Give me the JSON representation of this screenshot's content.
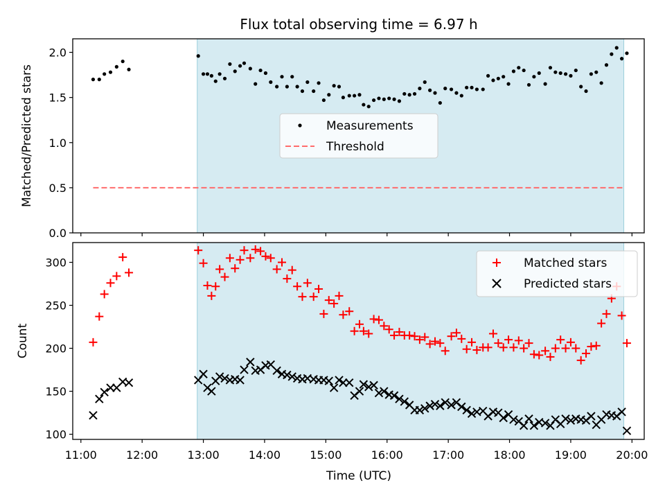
{
  "figure": {
    "title": "Flux total observing time = 6.97 h",
    "xlabel": "Time (UTC)"
  },
  "colors": {
    "observing_shade": "#add8e6",
    "measurement": "#000000",
    "threshold": "#ff6b6b",
    "matched": "#ff0000",
    "predicted": "#000000"
  },
  "chart_data": [
    {
      "type": "scatter",
      "ylabel": "Matched/Predicted stars",
      "xlim": [
        "10:52",
        "20:12"
      ],
      "ylim": [
        0,
        2.15
      ],
      "xticks": [
        "11:00",
        "12:00",
        "13:00",
        "14:00",
        "15:00",
        "16:00",
        "17:00",
        "18:00",
        "19:00",
        "20:00"
      ],
      "yticks": [
        "0.0",
        "0.5",
        "1.0",
        "1.5",
        "2.0"
      ],
      "shaded_span": [
        "12:54",
        "19:52"
      ],
      "legend_position": "center",
      "series": [
        {
          "name": "Measurements",
          "marker": "dot",
          "x": [
            "11:12",
            "11:18",
            "11:23",
            "11:29",
            "11:35",
            "11:41",
            "11:47",
            "12:55",
            "13:00",
            "13:04",
            "13:08",
            "13:12",
            "13:16",
            "13:21",
            "13:26",
            "13:31",
            "13:36",
            "13:40",
            "13:46",
            "13:51",
            "13:56",
            "14:01",
            "14:06",
            "14:12",
            "14:17",
            "14:22",
            "14:27",
            "14:32",
            "14:37",
            "14:42",
            "14:48",
            "14:53",
            "14:58",
            "15:03",
            "15:08",
            "15:13",
            "15:17",
            "15:23",
            "15:28",
            "15:33",
            "15:37",
            "15:42",
            "15:47",
            "15:52",
            "15:57",
            "16:02",
            "16:07",
            "16:12",
            "16:17",
            "16:22",
            "16:27",
            "16:32",
            "16:37",
            "16:42",
            "16:47",
            "16:52",
            "16:57",
            "17:03",
            "17:08",
            "17:13",
            "17:18",
            "17:23",
            "17:28",
            "17:34",
            "17:39",
            "17:44",
            "17:49",
            "17:54",
            "17:59",
            "18:04",
            "18:09",
            "18:14",
            "18:19",
            "18:24",
            "18:29",
            "18:35",
            "18:40",
            "18:45",
            "18:50",
            "18:55",
            "19:00",
            "19:05",
            "19:10",
            "19:15",
            "19:20",
            "19:25",
            "19:30",
            "19:35",
            "19:40",
            "19:45",
            "19:50",
            "19:55"
          ],
          "y": [
            1.7,
            1.7,
            1.76,
            1.78,
            1.84,
            1.9,
            1.81,
            1.96,
            1.76,
            1.76,
            1.74,
            1.68,
            1.76,
            1.71,
            1.87,
            1.79,
            1.85,
            1.88,
            1.82,
            1.65,
            1.8,
            1.77,
            1.67,
            1.62,
            1.73,
            1.62,
            1.73,
            1.62,
            1.57,
            1.67,
            1.57,
            1.66,
            1.47,
            1.53,
            1.63,
            1.62,
            1.5,
            1.52,
            1.52,
            1.53,
            1.42,
            1.4,
            1.47,
            1.49,
            1.48,
            1.49,
            1.48,
            1.46,
            1.54,
            1.53,
            1.54,
            1.6,
            1.67,
            1.58,
            1.55,
            1.44,
            1.6,
            1.59,
            1.55,
            1.52,
            1.61,
            1.61,
            1.59,
            1.59,
            1.74,
            1.69,
            1.71,
            1.73,
            1.65,
            1.79,
            1.83,
            1.8,
            1.64,
            1.73,
            1.77,
            1.65,
            1.83,
            1.78,
            1.77,
            1.76,
            1.74,
            1.8,
            1.62,
            1.57,
            1.76,
            1.78,
            1.66,
            1.86,
            1.98,
            2.05,
            1.93,
            1.99
          ]
        },
        {
          "name": "Threshold",
          "marker": "dashed-line",
          "x": [
            "11:12",
            "19:52"
          ],
          "y": [
            0.5,
            0.5
          ]
        }
      ]
    },
    {
      "type": "scatter",
      "ylabel": "Count",
      "xlim": [
        "10:52",
        "20:12"
      ],
      "ylim": [
        94,
        323
      ],
      "xticks": [
        "11:00",
        "12:00",
        "13:00",
        "14:00",
        "15:00",
        "16:00",
        "17:00",
        "18:00",
        "19:00",
        "20:00"
      ],
      "yticks": [
        "100",
        "150",
        "200",
        "250",
        "300"
      ],
      "shaded_span": [
        "12:54",
        "19:52"
      ],
      "legend_position": "upper right",
      "series": [
        {
          "name": "Matched stars",
          "marker": "plus",
          "x": [
            "11:12",
            "11:18",
            "11:23",
            "11:29",
            "11:35",
            "11:41",
            "11:47",
            "12:55",
            "13:00",
            "13:04",
            "13:08",
            "13:12",
            "13:16",
            "13:21",
            "13:26",
            "13:31",
            "13:36",
            "13:40",
            "13:46",
            "13:51",
            "13:56",
            "14:01",
            "14:06",
            "14:12",
            "14:17",
            "14:22",
            "14:27",
            "14:32",
            "14:37",
            "14:42",
            "14:48",
            "14:53",
            "14:58",
            "15:03",
            "15:08",
            "15:13",
            "15:17",
            "15:23",
            "15:28",
            "15:33",
            "15:37",
            "15:42",
            "15:47",
            "15:52",
            "15:57",
            "16:02",
            "16:07",
            "16:12",
            "16:17",
            "16:22",
            "16:27",
            "16:32",
            "16:37",
            "16:42",
            "16:47",
            "16:52",
            "16:57",
            "17:03",
            "17:08",
            "17:13",
            "17:18",
            "17:23",
            "17:28",
            "17:34",
            "17:39",
            "17:44",
            "17:49",
            "17:54",
            "17:59",
            "18:04",
            "18:09",
            "18:14",
            "18:19",
            "18:24",
            "18:29",
            "18:35",
            "18:40",
            "18:45",
            "18:50",
            "18:55",
            "19:00",
            "19:05",
            "19:10",
            "19:15",
            "19:20",
            "19:25",
            "19:30",
            "19:35",
            "19:40",
            "19:45",
            "19:50",
            "19:55"
          ],
          "y": [
            207,
            237,
            263,
            276,
            284,
            306,
            288,
            314,
            299,
            273,
            261,
            272,
            292,
            283,
            305,
            293,
            303,
            314,
            305,
            315,
            313,
            307,
            305,
            292,
            300,
            281,
            291,
            272,
            260,
            276,
            260,
            269,
            240,
            256,
            252,
            261,
            239,
            243,
            220,
            228,
            220,
            217,
            234,
            233,
            226,
            222,
            215,
            219,
            215,
            215,
            214,
            210,
            213,
            205,
            208,
            206,
            197,
            214,
            218,
            211,
            199,
            207,
            198,
            201,
            201,
            217,
            206,
            201,
            210,
            201,
            209,
            200,
            206,
            193,
            192,
            197,
            190,
            200,
            210,
            200,
            207,
            200,
            186,
            194,
            202,
            203,
            229,
            240,
            258,
            272,
            238,
            206
          ]
        },
        {
          "name": "Predicted stars",
          "marker": "x",
          "x": [
            "11:12",
            "11:18",
            "11:23",
            "11:29",
            "11:35",
            "11:41",
            "11:47",
            "12:55",
            "13:00",
            "13:04",
            "13:08",
            "13:12",
            "13:16",
            "13:21",
            "13:26",
            "13:31",
            "13:36",
            "13:40",
            "13:46",
            "13:51",
            "13:56",
            "14:01",
            "14:06",
            "14:12",
            "14:17",
            "14:22",
            "14:27",
            "14:32",
            "14:37",
            "14:42",
            "14:48",
            "14:53",
            "14:58",
            "15:03",
            "15:08",
            "15:13",
            "15:17",
            "15:23",
            "15:28",
            "15:33",
            "15:37",
            "15:42",
            "15:47",
            "15:52",
            "15:57",
            "16:02",
            "16:07",
            "16:12",
            "16:17",
            "16:22",
            "16:27",
            "16:32",
            "16:37",
            "16:42",
            "16:47",
            "16:52",
            "16:57",
            "17:03",
            "17:08",
            "17:13",
            "17:18",
            "17:23",
            "17:28",
            "17:34",
            "17:39",
            "17:44",
            "17:49",
            "17:54",
            "17:59",
            "18:04",
            "18:09",
            "18:14",
            "18:19",
            "18:24",
            "18:29",
            "18:35",
            "18:40",
            "18:45",
            "18:50",
            "18:55",
            "19:00",
            "19:05",
            "19:10",
            "19:15",
            "19:20",
            "19:25",
            "19:30",
            "19:35",
            "19:40",
            "19:45",
            "19:50",
            "19:55"
          ],
          "y": [
            122,
            141,
            149,
            154,
            154,
            161,
            160,
            163,
            170,
            154,
            150,
            162,
            167,
            165,
            163,
            164,
            163,
            175,
            184,
            174,
            175,
            180,
            181,
            174,
            170,
            169,
            167,
            165,
            164,
            165,
            164,
            163,
            163,
            162,
            154,
            163,
            160,
            160,
            145,
            150,
            158,
            155,
            157,
            148,
            150,
            146,
            145,
            141,
            138,
            134,
            128,
            128,
            130,
            133,
            135,
            133,
            137,
            134,
            137,
            132,
            128,
            124,
            126,
            127,
            121,
            126,
            125,
            119,
            123,
            117,
            115,
            110,
            118,
            110,
            114,
            113,
            110,
            117,
            112,
            118,
            116,
            118,
            117,
            116,
            121,
            111,
            117,
            123,
            122,
            121,
            126,
            104
          ]
        }
      ]
    }
  ]
}
